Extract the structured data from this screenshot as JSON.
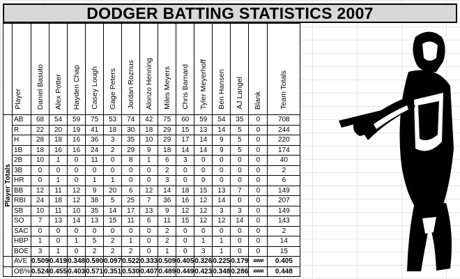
{
  "title": "DODGER BATTING STATISTICS 2007",
  "side_label": "Player Totals",
  "header": {
    "player_label": "Player",
    "players": [
      "Daniel Basuto",
      "Alex Potter",
      "Hayden Chap",
      "Casey Lough",
      "Gage Peters",
      "Jordan Roznus",
      "Alonzo Henning",
      "Miles Meyers",
      "Chris Barnard",
      "Tyler Meyerhoff",
      "Ben Hansen",
      "AJ Langel"
    ],
    "blank_label": "Blank",
    "team_totals_label": "Team Totals"
  },
  "rows": [
    {
      "stat": "AB",
      "values": [
        "68",
        "54",
        "59",
        "75",
        "53",
        "74",
        "42",
        "75",
        "60",
        "59",
        "54",
        "35"
      ],
      "blank": "0",
      "total": "708"
    },
    {
      "stat": "R",
      "values": [
        "22",
        "20",
        "19",
        "41",
        "18",
        "30",
        "18",
        "29",
        "15",
        "13",
        "14",
        "5"
      ],
      "blank": "0",
      "total": "244"
    },
    {
      "stat": "H",
      "values": [
        "28",
        "18",
        "16",
        "36",
        "3",
        "35",
        "10",
        "29",
        "17",
        "14",
        "9",
        "5"
      ],
      "blank": "0",
      "total": "220"
    },
    {
      "stat": "1B",
      "values": [
        "18",
        "16",
        "16",
        "24",
        "2",
        "29",
        "9",
        "18",
        "14",
        "14",
        "9",
        "5"
      ],
      "blank": "0",
      "total": "174"
    },
    {
      "stat": "2B",
      "values": [
        "10",
        "1",
        "0",
        "11",
        "0",
        "8",
        "1",
        "6",
        "3",
        "0",
        "0",
        "0"
      ],
      "blank": "0",
      "total": "40"
    },
    {
      "stat": "3B",
      "values": [
        "0",
        "0",
        "0",
        "0",
        "0",
        "0",
        "0",
        "2",
        "0",
        "0",
        "0",
        "0"
      ],
      "blank": "0",
      "total": "2"
    },
    {
      "stat": "HR",
      "values": [
        "0",
        "1",
        "0",
        "1",
        "1",
        "0",
        "0",
        "3",
        "0",
        "0",
        "0",
        "0"
      ],
      "blank": "0",
      "total": "6"
    },
    {
      "stat": "BB",
      "values": [
        "12",
        "11",
        "12",
        "9",
        "20",
        "6",
        "12",
        "14",
        "18",
        "15",
        "13",
        "7"
      ],
      "blank": "0",
      "total": "149"
    },
    {
      "stat": "RBI",
      "values": [
        "24",
        "18",
        "12",
        "38",
        "5",
        "25",
        "7",
        "36",
        "16",
        "12",
        "14",
        "0"
      ],
      "blank": "0",
      "total": "207"
    },
    {
      "stat": "SB",
      "values": [
        "10",
        "11",
        "10",
        "35",
        "14",
        "17",
        "13",
        "9",
        "12",
        "12",
        "3",
        "3"
      ],
      "blank": "0",
      "total": "149"
    },
    {
      "stat": "SO",
      "values": [
        "7",
        "13",
        "14",
        "13",
        "15",
        "11",
        "6",
        "11",
        "15",
        "12",
        "12",
        "14"
      ],
      "blank": "0",
      "total": "143"
    },
    {
      "stat": "SAC",
      "values": [
        "0",
        "0",
        "0",
        "0",
        "0",
        "0",
        "0",
        "2",
        "0",
        "0",
        "0",
        "0"
      ],
      "blank": "0",
      "total": "2"
    },
    {
      "stat": "HBP",
      "values": [
        "1",
        "0",
        "1",
        "5",
        "2",
        "1",
        "0",
        "2",
        "0",
        "1",
        "1",
        "0"
      ],
      "blank": "0",
      "total": "14"
    },
    {
      "stat": "BOE",
      "values": [
        "3",
        "1",
        "0",
        "2",
        "2",
        "2",
        "0",
        "1",
        "0",
        "3",
        "1",
        "0"
      ],
      "blank": "0",
      "total": "15"
    }
  ],
  "ave_row": {
    "stat": "AVE",
    "values": [
      "0.509",
      "0.419",
      "0.348",
      "0.590",
      "0.097",
      "0.522",
      "0.333",
      "0.509",
      "0.405",
      "0.326",
      "0.225",
      "0.179"
    ],
    "blank": "#####",
    "total": "0.405"
  },
  "ob_row": {
    "stat": "OB%",
    "values": [
      "0.524",
      "0.455",
      "0.403",
      "0.571",
      "0.351",
      "0.530",
      "0.407",
      "0.489",
      "0.449",
      "0.423",
      "0.348",
      "0.286"
    ],
    "blank": "#####",
    "total": "0.448"
  }
}
